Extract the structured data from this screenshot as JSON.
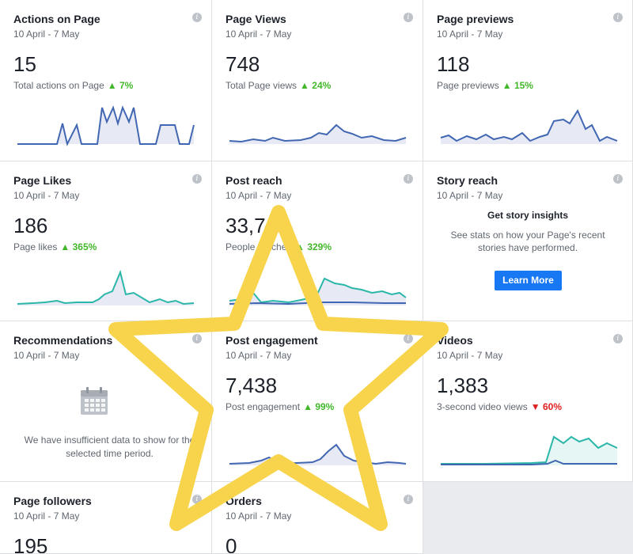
{
  "cards": {
    "actions": {
      "title": "Actions on Page",
      "range": "10 April - 7 May",
      "value": "15",
      "sub": "Total actions on Page",
      "change": "7%",
      "direction": "up"
    },
    "views": {
      "title": "Page Views",
      "range": "10 April - 7 May",
      "value": "748",
      "sub": "Total Page views",
      "change": "24%",
      "direction": "up"
    },
    "previews": {
      "title": "Page previews",
      "range": "10 April - 7 May",
      "value": "118",
      "sub": "Page previews",
      "change": "15%",
      "direction": "up"
    },
    "likes": {
      "title": "Page Likes",
      "range": "10 April - 7 May",
      "value": "186",
      "sub": "Page likes",
      "change": "365%",
      "direction": "up"
    },
    "reach": {
      "title": "Post reach",
      "range": "10 April - 7 May",
      "value": "33,7",
      "sub": "People reached",
      "change": "329%",
      "direction": "up"
    },
    "story": {
      "title": "Story reach",
      "range": "10 April - 7 May",
      "heading": "Get story insights",
      "body": "See stats on how your Page's recent stories have performed.",
      "button": "Learn More"
    },
    "recommendations": {
      "title": "Recommendations",
      "range": "10 April - 7 May",
      "empty": "We have insufficient data to show for the selected time period."
    },
    "engagement": {
      "title": "Post engagement",
      "range": "10 April - 7 May",
      "value": "7,438",
      "sub": "Post engagement",
      "change": "99%",
      "direction": "up"
    },
    "videos": {
      "title": "Videos",
      "range": "10 April - 7 May",
      "value": "1,383",
      "sub": "3-second video views",
      "change": "60%",
      "direction": "down"
    },
    "followers": {
      "title": "Page followers",
      "range": "10 April - 7 May",
      "value": "195"
    },
    "orders": {
      "title": "Orders",
      "range": "10 April - 7 May",
      "value": "0"
    }
  },
  "icons": {
    "info": "info-icon",
    "up": "triangle-up-icon",
    "down": "triangle-down-icon",
    "calendar": "calendar-icon",
    "star_overlay": "star-outline"
  },
  "colors": {
    "primary_line": "#4267b2",
    "secondary_line": "#2ab7a9",
    "fill": "#e7eaf4",
    "up": "#42b72a",
    "down": "#e02020",
    "button": "#1877f2",
    "star": "#f7d44c"
  },
  "glyphs": {
    "info": "i",
    "up": "▲",
    "down": "▼"
  }
}
